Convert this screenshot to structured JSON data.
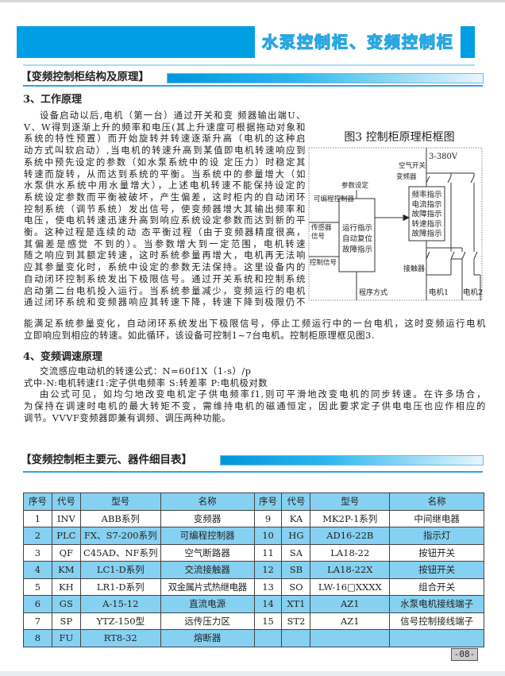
{
  "header": {
    "title": "水泵控制柜、变频控制柜",
    "accent": "#009fe3"
  },
  "section1": {
    "title": "【变频控制柜结构及原理】",
    "sub3": "3、工作原理",
    "para_narrow": [
      "设备启动以后,电机（第一台）通过开关和变 频器输出端U、",
      "V、W得到逐渐上升的频率和电压(其上升速度可根据拖动对象和",
      "系统的特性预置）而开始旋转并转速逐渐升高（电机的这种启",
      "动方式叫软启动）,当电机的转速升高到某值即电机转速响应到",
      "系统中预先设定的参数（如水泵系统中的设 定压力）时稳定其",
      "转速而旋转，从而达到系统的平衡。当系统中的参量增大（如",
      "水泵供水系统中用水量增大），上述电机转速不能保持设定的",
      "系统设定参数而平衡被破坏，产生偏差，这时柜内的自动闭环",
      "控制系统（调节系统）发出信号，使变频器增大其输出频率和",
      "电压，使电机转速迅速升高到响应系统设定参数而达到新的平",
      "衡。这种过程是连续的动 态平衡过程（由于变频器精度很高，",
      "其偏差是感觉 不到的）。当参数增大到一定范围，电机转速",
      "随之响应到其额定转速，这时系统参量再增大，电机再无法响",
      "应其参量变化时，系统中设定的参数无法保持。这里设备内的",
      "自动闭环控制系统发出下极限信号。通过开关系统和控制系统",
      "启动第二台电机投入运行。当系统参量减少，变频运行的电机",
      "通过闭环系统和变频器响应其转速下降，转速下降到极限仍不"
    ],
    "para_wide": [
      "能满足系统参量变化，自动闭环系统发出下极限信号，停止工频运行中的一台电机，这时变频运行电机",
      "立即响应到相应的转速。如此循环，该设备可控制1~7台电机。控制柜原理框见图3."
    ],
    "sub4": "4、变频调速原理",
    "para4": [
      "交流感应电动机的转速公式：N=60f1X（1-s）/p",
      "式中-N:电机转速f1:定子供电频率 S:转差率 P:电机极对数",
      "由公式可见，如均匀地改变电机定子供电频率f1,则可平滑地改变电机的同步转速。在许多场合，",
      "为保持在调速时电机的最大转矩不变，需维持电机的磁通恒定，因此要求定子供电电压也应作相应的",
      "调节。VVVF变频器即兼有调频、调压两种功能。"
    ]
  },
  "diagram": {
    "title": "图3 控制柜原理柜框图",
    "supply": "3-380V",
    "air_switch": "空气开关",
    "inverter": "变频器",
    "param_set": "参数设定",
    "plc": "可编程控制器",
    "sensor_1": "传感器",
    "sensor_2": "信号",
    "control_signal": "控制信号",
    "left_box": [
      "运行指示",
      "自动复位",
      "故障指示"
    ],
    "right_box": [
      "频率指示",
      "电流指示",
      "故障指示",
      "转速指示",
      "故障指示"
    ],
    "contactor": "接触器",
    "program_mode": "程序方式",
    "motor1": "电机1",
    "motor2": "电机2"
  },
  "section2": {
    "title": "【变频控制柜主要元、器件细目表】",
    "headers": [
      "序号",
      "代号",
      "型号",
      "名称",
      "序号",
      "代号",
      "型号",
      "名称"
    ],
    "rows": [
      [
        "1",
        "INV",
        "ABB系列",
        "变频器",
        "9",
        "KA",
        "MK2P-1系列",
        "中间继电器"
      ],
      [
        "2",
        "PLC",
        "FX、S7-200系列",
        "可编程控制器",
        "10",
        "HG",
        "AD16-22B",
        "指示灯"
      ],
      [
        "3",
        "QF",
        "C45AD、NF系列",
        "空气断路器",
        "11",
        "SA",
        "LA18-22",
        "按钮开关"
      ],
      [
        "4",
        "KM",
        "LC1-D系列",
        "交流接触器",
        "12",
        "SB",
        "LA18-22X",
        "按钮开关"
      ],
      [
        "5",
        "KH",
        "LR1-D系列",
        "双金属片式热继电器",
        "13",
        "SO",
        "LW-16□XXXX",
        "组合开关"
      ],
      [
        "6",
        "GS",
        "A-15-12",
        "直流电源",
        "14",
        "XT1",
        "AZ1",
        "水泵电机接线端子"
      ],
      [
        "7",
        "SP",
        "YTZ-150型",
        "远传压力区",
        "15",
        "ST2",
        "AZ1",
        "信号控制接线端子"
      ],
      [
        "8",
        "FU",
        "RT8-32",
        "熔断器",
        "",
        "",
        "",
        ""
      ]
    ],
    "row_highlight": "#86d1f1"
  },
  "page_number": "-08-"
}
